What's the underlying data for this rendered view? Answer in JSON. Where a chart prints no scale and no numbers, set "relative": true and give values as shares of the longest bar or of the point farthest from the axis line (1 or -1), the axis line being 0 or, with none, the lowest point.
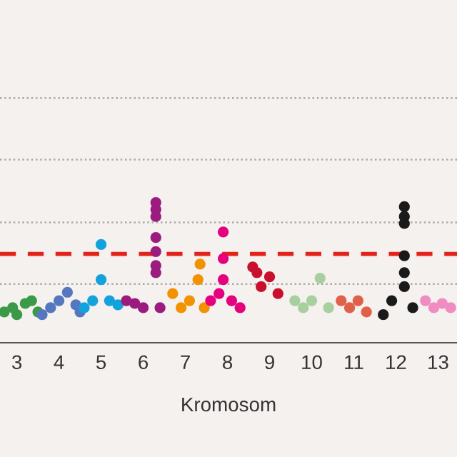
{
  "chart_data": {
    "type": "scatter",
    "relative": true,
    "xlabel": "Kromosom",
    "marker": "circle",
    "legend": false,
    "xlim": [
      2.6,
      13.45
    ],
    "xticks": [
      3,
      4,
      5,
      6,
      7,
      8,
      9,
      10,
      11,
      12,
      13
    ],
    "series": [
      {
        "color": "#3a9a48",
        "x": [
          2.7,
          2.9,
          3.0,
          3.2,
          3.35,
          3.5
        ],
        "values": [
          0.22,
          0.25,
          0.2,
          0.28,
          0.3,
          0.22
        ]
      },
      {
        "color": "#5577c0",
        "x": [
          3.6,
          3.8,
          4.0,
          4.2,
          4.4,
          4.5
        ],
        "values": [
          0.2,
          0.25,
          0.3,
          0.36,
          0.27,
          0.22
        ]
      },
      {
        "color": "#12a3dc",
        "x": [
          4.6,
          4.8,
          5.0,
          5.0,
          5.2,
          5.4
        ],
        "values": [
          0.25,
          0.3,
          0.7,
          0.45,
          0.3,
          0.27
        ]
      },
      {
        "color": "#9b1c7e",
        "x": [
          5.6,
          5.8,
          6.0,
          6.3,
          6.3,
          6.3,
          6.3,
          6.3,
          6.3,
          6.3,
          6.4
        ],
        "values": [
          0.3,
          0.28,
          0.25,
          1.0,
          0.95,
          0.9,
          0.75,
          0.65,
          0.55,
          0.5,
          0.25
        ]
      },
      {
        "color": "#f39200",
        "x": [
          6.7,
          6.9,
          7.1,
          7.3,
          7.35,
          7.45
        ],
        "values": [
          0.35,
          0.25,
          0.3,
          0.45,
          0.56,
          0.25
        ]
      },
      {
        "color": "#e5007e",
        "x": [
          7.6,
          7.8,
          7.9,
          7.9,
          7.9,
          8.1,
          8.3
        ],
        "values": [
          0.3,
          0.35,
          0.79,
          0.6,
          0.45,
          0.3,
          0.25
        ]
      },
      {
        "color": "#c8102e",
        "x": [
          8.6,
          8.7,
          8.8,
          9.0,
          9.2
        ],
        "values": [
          0.54,
          0.5,
          0.4,
          0.47,
          0.35
        ]
      },
      {
        "color": "#a8cfa0",
        "x": [
          9.6,
          9.8,
          10.0,
          10.2,
          10.4
        ],
        "values": [
          0.3,
          0.25,
          0.3,
          0.46,
          0.25
        ]
      },
      {
        "color": "#e0604a",
        "x": [
          10.7,
          10.9,
          11.1,
          11.3
        ],
        "values": [
          0.3,
          0.25,
          0.3,
          0.22
        ]
      },
      {
        "color": "#1a1a1a",
        "x": [
          11.7,
          11.9,
          12.2,
          12.2,
          12.2,
          12.2,
          12.2,
          12.2,
          12.4
        ],
        "values": [
          0.2,
          0.3,
          0.97,
          0.9,
          0.85,
          0.62,
          0.5,
          0.4,
          0.25
        ]
      },
      {
        "color": "#f08cc0",
        "x": [
          12.7,
          12.9,
          13.1,
          13.3
        ],
        "values": [
          0.3,
          0.25,
          0.28,
          0.25
        ]
      }
    ],
    "ref_lines": [
      {
        "axis": "y",
        "value": 0.633,
        "color": "#e2231a",
        "line_style": "dashed"
      },
      {
        "axis": "y",
        "value": 0.418,
        "color": "#aaaaaa",
        "line_style": "dotted"
      },
      {
        "axis": "y",
        "value": 0.857,
        "color": "#aaaaaa",
        "line_style": "dotted"
      },
      {
        "axis": "y",
        "value": 1.306,
        "color": "#aaaaaa",
        "line_style": "dotted"
      },
      {
        "axis": "y",
        "value": 1.745,
        "color": "#aaaaaa",
        "line_style": "dotted"
      }
    ]
  }
}
